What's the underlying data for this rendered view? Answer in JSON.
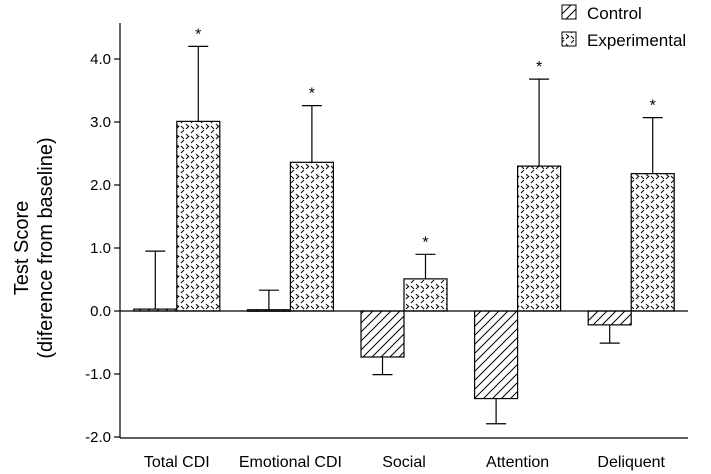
{
  "chart_data": {
    "type": "bar",
    "title": "",
    "xlabel": "",
    "ylabel": "Test Score",
    "ylabel_sub": "(diference from baseline)",
    "ylim": [
      -2.0,
      4.5
    ],
    "yticks": [
      {
        "value": -2.0,
        "label": "-2.0"
      },
      {
        "value": -1.0,
        "label": "-1.0"
      },
      {
        "value": 0.0,
        "label": "0.0"
      },
      {
        "value": 1.0,
        "label": "1.0"
      },
      {
        "value": 2.0,
        "label": "2.0"
      },
      {
        "value": 3.0,
        "label": "3.0"
      },
      {
        "value": 4.0,
        "label": "4.0"
      }
    ],
    "categories": [
      "Total CDI",
      "Emotional CDI",
      "Social",
      "Attention",
      "Deliquent"
    ],
    "series": [
      {
        "name": "Control",
        "pattern": "diagonal-hatch",
        "values": [
          0.03,
          0.02,
          -0.73,
          -1.39,
          -0.22
        ],
        "errors": [
          0.92,
          0.31,
          0.28,
          0.4,
          0.29
        ],
        "significance": [
          "",
          "",
          "",
          "",
          ""
        ]
      },
      {
        "name": "Experimental",
        "pattern": "dashed-crosshatch",
        "values": [
          3.01,
          2.36,
          0.51,
          2.3,
          2.18
        ],
        "errors": [
          1.19,
          0.9,
          0.39,
          1.38,
          0.89
        ],
        "significance": [
          "*",
          "*",
          "*",
          "*",
          "*"
        ]
      }
    ],
    "legend": {
      "position": "top-right"
    },
    "grid": false
  }
}
